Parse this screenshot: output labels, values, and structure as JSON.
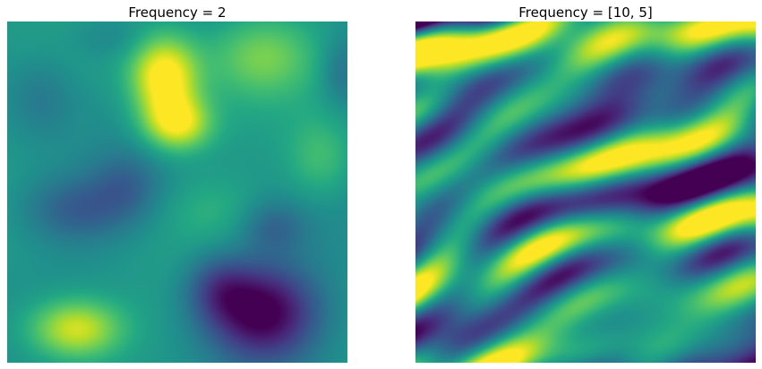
{
  "panels": [
    {
      "title": "Frequency = 2",
      "colormap": "viridis"
    },
    {
      "title": "Frequency = [10, 5]",
      "colormap": "viridis"
    }
  ]
}
